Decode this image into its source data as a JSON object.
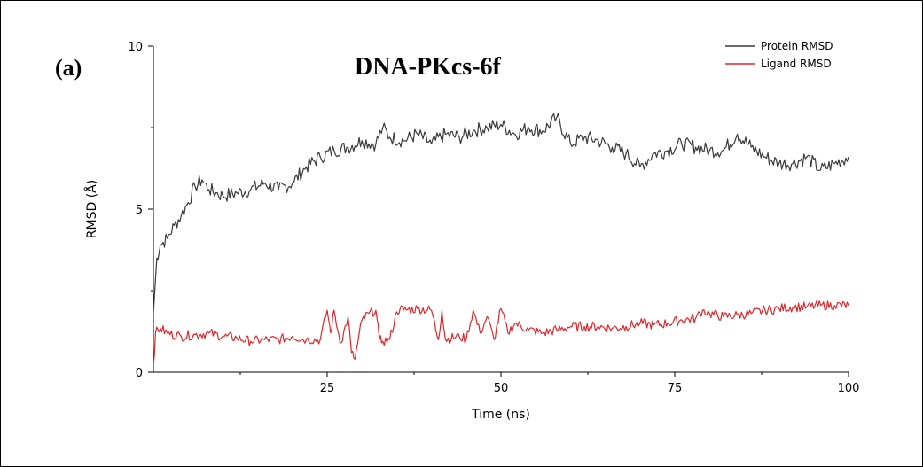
{
  "panel_label": "(a)",
  "chart_data": {
    "type": "line",
    "title": "DNA-PKcs-6f",
    "xlabel": "Time (ns)",
    "ylabel": "RMSD (Å)",
    "xlim": [
      0,
      100
    ],
    "ylim": [
      0,
      10
    ],
    "xticks": [
      25,
      50,
      75,
      100
    ],
    "yticks": [
      0,
      5,
      10
    ],
    "grid": false,
    "legend_position": "top-right",
    "series": [
      {
        "name": "Protein RMSD",
        "color": "#3a3a3a",
        "x": [
          0,
          0.5,
          1,
          2,
          3,
          4,
          5,
          6,
          7,
          8,
          9,
          10,
          12,
          14,
          16,
          18,
          20,
          22,
          24,
          26,
          28,
          30,
          32,
          33,
          34,
          36,
          38,
          40,
          42,
          44,
          46,
          48,
          50,
          52,
          54,
          56,
          58,
          60,
          62,
          64,
          66,
          68,
          70,
          72,
          74,
          76,
          78,
          80,
          82,
          84,
          86,
          88,
          90,
          92,
          94,
          96,
          98,
          100
        ],
        "y": [
          1.8,
          3.5,
          3.9,
          4.1,
          4.5,
          4.8,
          5.2,
          5.7,
          5.9,
          5.6,
          5.5,
          5.4,
          5.5,
          5.6,
          5.8,
          5.6,
          5.8,
          6.3,
          6.6,
          6.8,
          6.9,
          7.1,
          7.0,
          7.5,
          7.2,
          7.1,
          7.3,
          7.0,
          7.3,
          7.2,
          7.4,
          7.5,
          7.6,
          7.3,
          7.5,
          7.4,
          7.8,
          7.0,
          7.2,
          7.1,
          6.9,
          6.7,
          6.3,
          6.7,
          6.8,
          7.0,
          6.9,
          6.8,
          6.8,
          7.3,
          6.9,
          6.6,
          6.4,
          6.4,
          6.6,
          6.2,
          6.4,
          6.6
        ]
      },
      {
        "name": "Ligand RMSD",
        "color": "#e0262b",
        "x": [
          0,
          0.3,
          1,
          2,
          4,
          6,
          8,
          10,
          12,
          14,
          16,
          18,
          20,
          22,
          24,
          25,
          25.5,
          26,
          26.5,
          27,
          28,
          28.5,
          29,
          30,
          31,
          32,
          32.5,
          33,
          34,
          35,
          35.5,
          36,
          38,
          40,
          41,
          41.5,
          42,
          44,
          45,
          46,
          47,
          48,
          49,
          50,
          51,
          52,
          54,
          56,
          58,
          60,
          62,
          64,
          66,
          68,
          70,
          72,
          74,
          76,
          78,
          79,
          80,
          82,
          84,
          86,
          88,
          90,
          92,
          94,
          96,
          98,
          100
        ],
        "y": [
          0.2,
          1.2,
          1.35,
          1.2,
          1.1,
          1.15,
          1.2,
          1.1,
          1.05,
          0.95,
          1.0,
          1.0,
          1.1,
          1.0,
          1.0,
          1.9,
          1.2,
          1.9,
          1.3,
          0.9,
          1.7,
          0.6,
          0.4,
          1.6,
          1.8,
          1.9,
          1.0,
          0.95,
          1.0,
          1.85,
          1.95,
          1.9,
          1.95,
          1.9,
          1.0,
          1.9,
          1.0,
          1.1,
          1.0,
          1.9,
          1.2,
          1.7,
          1.0,
          1.95,
          1.2,
          1.5,
          1.3,
          1.2,
          1.3,
          1.4,
          1.4,
          1.4,
          1.35,
          1.4,
          1.5,
          1.45,
          1.5,
          1.6,
          1.65,
          1.9,
          1.8,
          1.7,
          1.75,
          1.8,
          1.9,
          1.95,
          2.0,
          2.0,
          2.05,
          2.05,
          2.05
        ]
      }
    ]
  }
}
